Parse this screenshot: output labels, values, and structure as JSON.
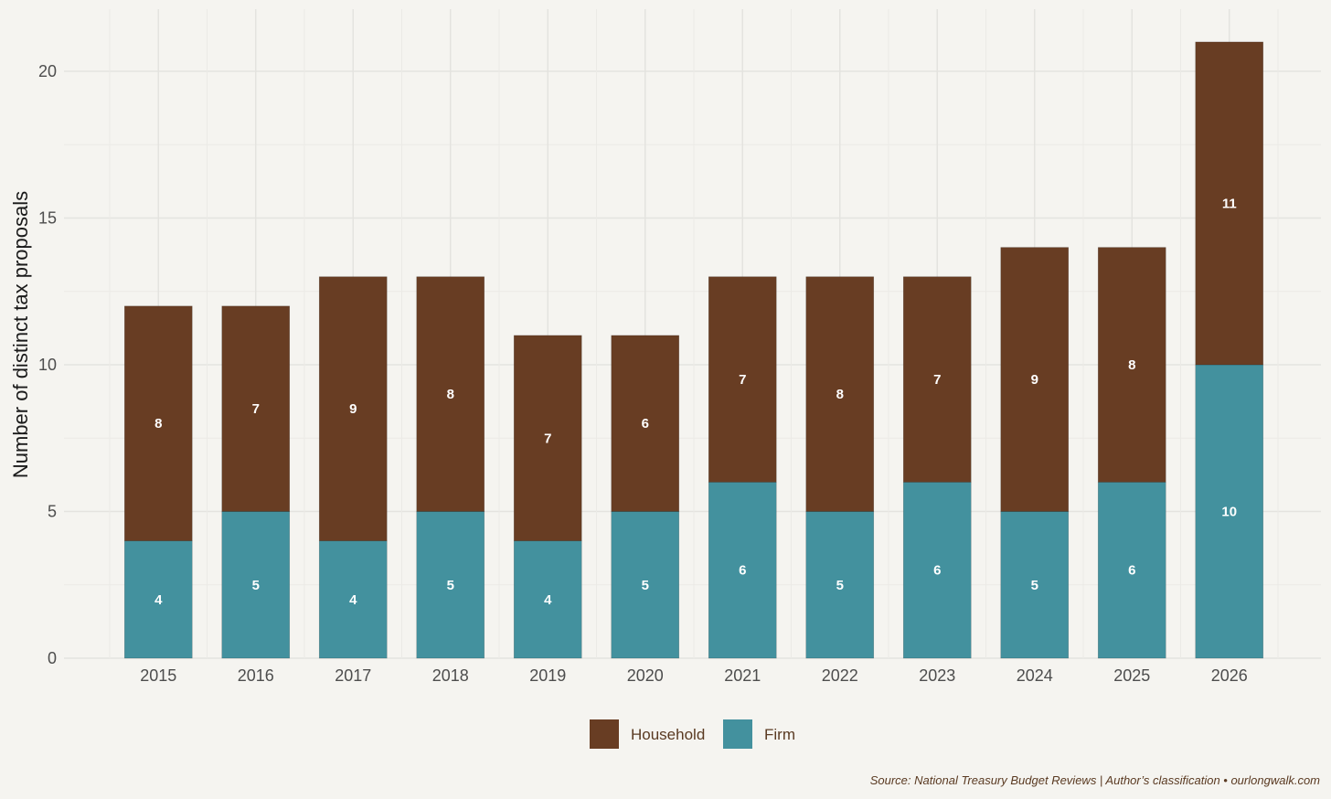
{
  "chart_data": {
    "type": "bar",
    "stacked": true,
    "categories": [
      "2015",
      "2016",
      "2017",
      "2018",
      "2019",
      "2020",
      "2021",
      "2022",
      "2023",
      "2024",
      "2025",
      "2026"
    ],
    "series": [
      {
        "name": "Firm",
        "color": "#43919e",
        "values": [
          4,
          5,
          4,
          5,
          4,
          5,
          6,
          5,
          6,
          5,
          6,
          10
        ]
      },
      {
        "name": "Household",
        "color": "#683d23",
        "values": [
          8,
          7,
          9,
          8,
          7,
          6,
          7,
          8,
          7,
          9,
          8,
          11
        ]
      }
    ],
    "ylabel": "Number of distinct tax proposals",
    "xlabel": "",
    "ylim": [
      0,
      22
    ],
    "yticks": [
      "0",
      "5",
      "10",
      "15",
      "20"
    ],
    "legend": {
      "position": "bottom",
      "entries": [
        "Household",
        "Firm"
      ]
    },
    "grid": true,
    "caption": "Source: National Treasury Budget Reviews | Author’s classification • ourlongwalk.com"
  }
}
